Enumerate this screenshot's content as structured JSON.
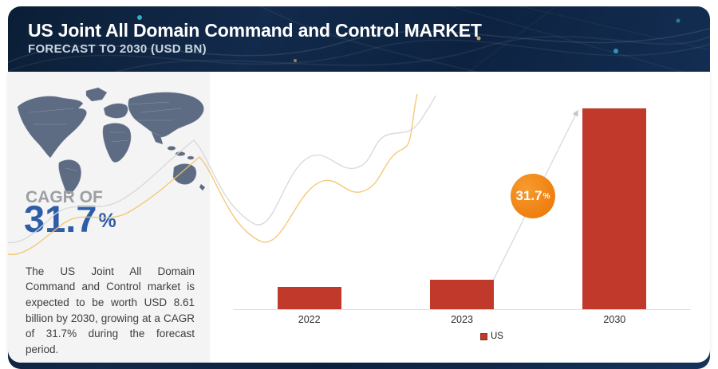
{
  "header": {
    "title": "US Joint All Domain Command and Control MARKET",
    "subtitle": "FORECAST TO 2030 (USD BN)"
  },
  "sidebar": {
    "cagr_label": "CAGR OF",
    "cagr_value": "31.7",
    "cagr_unit": "%",
    "description": "The US Joint All Domain Command and Control market is expected to be worth USD 8.61 billion by 2030, growing at a CAGR of 31.7% during the forecast period."
  },
  "chart": {
    "growth_badge": {
      "value": "31.7",
      "unit": "%"
    },
    "legend": [
      {
        "label": "US",
        "color": "#c0392b"
      }
    ]
  },
  "chart_data": {
    "type": "bar",
    "title": "US Joint All Domain Command and Control Market Forecast to 2030 (USD BN)",
    "categories": [
      "2022",
      "2023",
      "2030"
    ],
    "series": [
      {
        "name": "US",
        "values": [
          0.95,
          1.26,
          8.61
        ]
      }
    ],
    "xlabel": "",
    "ylabel": "USD BN",
    "ylim": [
      0,
      8.61
    ],
    "grid": false,
    "legend_position": "bottom",
    "bar_color": "#c0392b",
    "annotations": [
      "31.7% growth arrow from 2023 bar to 2030 bar"
    ]
  },
  "colors": {
    "navy": "#0f2645",
    "accent_blue": "#2d5da6",
    "bar_red": "#c0392b",
    "badge_orange": "#ef8312",
    "sidebar_gray": "#f4f4f5",
    "map_slate": "#5e6c83",
    "wave_gray": "#d8d8d8",
    "wave_yellow": "#f3c36a"
  }
}
